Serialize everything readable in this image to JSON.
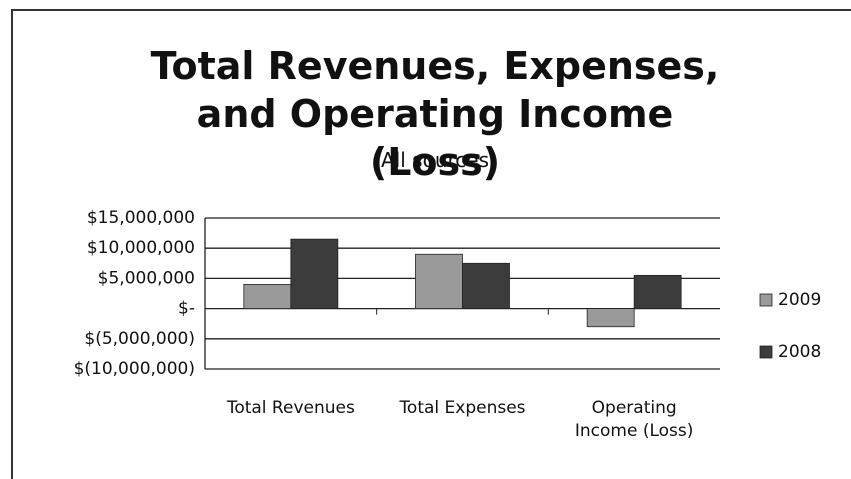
{
  "chart_data": {
    "type": "bar",
    "title": "Total Revenues, Expenses, and Operating Income (Loss)",
    "subtitle": "(All sources)",
    "categories": [
      "Total Revenues",
      "Total Expenses",
      "Operating Income (Loss)"
    ],
    "series": [
      {
        "name": "2009",
        "color": "#9a9a9a",
        "values": [
          4000000,
          9000000,
          -3000000
        ]
      },
      {
        "name": "2008",
        "color": "#3c3c3c",
        "values": [
          11500000,
          7500000,
          5500000
        ]
      }
    ],
    "ylim": [
      -10000000,
      15000000
    ],
    "yticks": [
      {
        "value": -10000000,
        "label": "$(10,000,000)"
      },
      {
        "value": -5000000,
        "label": "$(5,000,000)"
      },
      {
        "value": 0,
        "label": "$-"
      },
      {
        "value": 5000000,
        "label": "$5,000,000"
      },
      {
        "value": 10000000,
        "label": "$10,000,000"
      },
      {
        "value": 15000000,
        "label": "$15,000,000"
      }
    ],
    "grid": true,
    "legend": "right"
  }
}
